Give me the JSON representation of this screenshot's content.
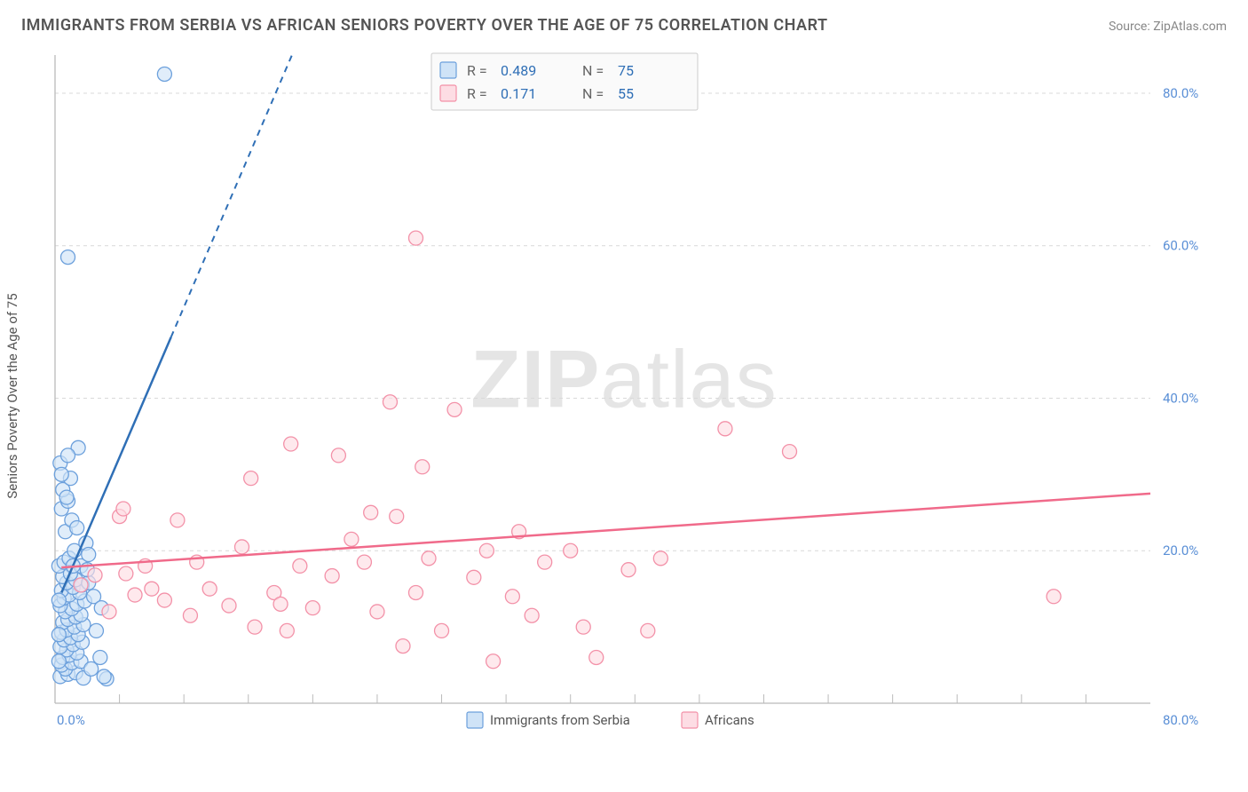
{
  "title": "IMMIGRANTS FROM SERBIA VS AFRICAN SENIORS POVERTY OVER THE AGE OF 75 CORRELATION CHART",
  "source": "Source: ZipAtlas.com",
  "y_axis_label": "Seniors Poverty Over the Age of 75",
  "watermark_bold": "ZIP",
  "watermark_rest": "atlas",
  "colors": {
    "blue_fill": "#cfe3f7",
    "blue_stroke": "#6ca0dc",
    "blue_line": "#2f6fb6",
    "pink_fill": "#fddde4",
    "pink_stroke": "#f391a8",
    "pink_line": "#f06a8a",
    "tick_text": "#5a8fd6",
    "grid": "#d9d9d9",
    "axis": "#bbbbbb",
    "title_text": "#555555",
    "legend_box_fill": "#fafafa",
    "legend_box_stroke": "#cccccc",
    "legend_text": "#666666",
    "legend_value": "#2f6fb6"
  },
  "axes": {
    "xlim": [
      0,
      85
    ],
    "ylim": [
      0,
      85
    ],
    "xticks": [
      0,
      80
    ],
    "xtick_labels": [
      "0.0%",
      "80.0%"
    ],
    "yticks": [
      20,
      40,
      60,
      80
    ],
    "ytick_labels": [
      "20.0%",
      "40.0%",
      "60.0%",
      "80.0%"
    ],
    "tick_fontsize": 15,
    "grid_dashed": true
  },
  "series": [
    {
      "key": "serbia",
      "label": "Immigrants from Serbia",
      "fill_color_key": "blue_fill",
      "stroke_color_key": "blue_stroke",
      "line_color_key": "blue_line",
      "marker_radius": 8,
      "R": "0.489",
      "N": "75",
      "trend": {
        "x0": 0.5,
        "y0": 14.5,
        "x1": 9,
        "y1": 48,
        "dashed_extend_to_y": 85
      },
      "points": [
        [
          0.4,
          3.5
        ],
        [
          1.0,
          3.8
        ],
        [
          1.6,
          4.0
        ],
        [
          0.8,
          4.5
        ],
        [
          0.5,
          5.0
        ],
        [
          1.3,
          5.3
        ],
        [
          2.0,
          5.5
        ],
        [
          0.6,
          6.0
        ],
        [
          1.1,
          6.3
        ],
        [
          1.7,
          6.6
        ],
        [
          0.9,
          7.0
        ],
        [
          0.4,
          7.4
        ],
        [
          1.4,
          7.7
        ],
        [
          2.1,
          8.0
        ],
        [
          0.7,
          8.3
        ],
        [
          1.2,
          8.6
        ],
        [
          1.8,
          9.0
        ],
        [
          0.5,
          9.3
        ],
        [
          0.9,
          9.6
        ],
        [
          1.5,
          10.0
        ],
        [
          2.2,
          10.3
        ],
        [
          0.6,
          10.6
        ],
        [
          1.0,
          11.0
        ],
        [
          1.6,
          11.3
        ],
        [
          2.0,
          11.6
        ],
        [
          0.8,
          12.0
        ],
        [
          1.3,
          12.4
        ],
        [
          0.4,
          12.8
        ],
        [
          1.7,
          13.0
        ],
        [
          2.3,
          13.4
        ],
        [
          0.7,
          13.8
        ],
        [
          1.1,
          14.2
        ],
        [
          1.9,
          14.5
        ],
        [
          0.5,
          14.8
        ],
        [
          1.4,
          15.2
        ],
        [
          2.1,
          15.5
        ],
        [
          0.9,
          15.8
        ],
        [
          1.6,
          16.2
        ],
        [
          0.6,
          16.6
        ],
        [
          1.2,
          17.0
        ],
        [
          3.0,
          14.0
        ],
        [
          2.6,
          15.8
        ],
        [
          3.2,
          9.5
        ],
        [
          3.5,
          6.0
        ],
        [
          4.0,
          3.2
        ],
        [
          2.2,
          3.3
        ],
        [
          2.8,
          4.5
        ],
        [
          3.6,
          12.5
        ],
        [
          0.3,
          18.0
        ],
        [
          0.7,
          18.5
        ],
        [
          1.1,
          19.0
        ],
        [
          1.5,
          20.0
        ],
        [
          2.4,
          21.0
        ],
        [
          0.8,
          22.5
        ],
        [
          1.3,
          24.0
        ],
        [
          0.5,
          25.5
        ],
        [
          1.0,
          26.5
        ],
        [
          1.7,
          23.0
        ],
        [
          0.6,
          28.0
        ],
        [
          1.2,
          29.5
        ],
        [
          0.4,
          31.5
        ],
        [
          1.8,
          33.5
        ],
        [
          0.9,
          27.0
        ],
        [
          2.0,
          18.0
        ],
        [
          2.6,
          19.5
        ],
        [
          1.4,
          18.0
        ],
        [
          2.5,
          17.5
        ],
        [
          0.3,
          13.5
        ],
        [
          0.3,
          9.0
        ],
        [
          0.3,
          5.5
        ],
        [
          3.8,
          3.5
        ],
        [
          1.0,
          58.5
        ],
        [
          0.5,
          30.0
        ],
        [
          1.0,
          32.5
        ],
        [
          8.5,
          82.5
        ]
      ]
    },
    {
      "key": "africans",
      "label": "Africans",
      "fill_color_key": "pink_fill",
      "stroke_color_key": "pink_stroke",
      "line_color_key": "pink_line",
      "marker_radius": 8,
      "R": "0.171",
      "N": "55",
      "trend": {
        "x0": 0.5,
        "y0": 17.8,
        "x1": 85,
        "y1": 27.5
      },
      "points": [
        [
          2.0,
          15.5
        ],
        [
          3.1,
          16.8
        ],
        [
          4.2,
          12.0
        ],
        [
          5.0,
          24.5
        ],
        [
          5.3,
          25.5
        ],
        [
          5.5,
          17.0
        ],
        [
          6.2,
          14.2
        ],
        [
          7.0,
          18.0
        ],
        [
          7.5,
          15.0
        ],
        [
          8.5,
          13.5
        ],
        [
          9.5,
          24.0
        ],
        [
          10.5,
          11.5
        ],
        [
          11.0,
          18.5
        ],
        [
          12.0,
          15.0
        ],
        [
          13.5,
          12.8
        ],
        [
          14.5,
          20.5
        ],
        [
          15.2,
          29.5
        ],
        [
          15.5,
          10.0
        ],
        [
          17.0,
          14.5
        ],
        [
          17.5,
          13.0
        ],
        [
          18.0,
          9.5
        ],
        [
          18.3,
          34.0
        ],
        [
          19.0,
          18.0
        ],
        [
          20.0,
          12.5
        ],
        [
          21.5,
          16.7
        ],
        [
          22.0,
          32.5
        ],
        [
          23.0,
          21.5
        ],
        [
          24.0,
          18.5
        ],
        [
          24.5,
          25.0
        ],
        [
          25.0,
          12.0
        ],
        [
          26.0,
          39.5
        ],
        [
          26.5,
          24.5
        ],
        [
          27.0,
          7.5
        ],
        [
          28.0,
          14.5
        ],
        [
          28.5,
          31.0
        ],
        [
          29.0,
          19.0
        ],
        [
          30.0,
          9.5
        ],
        [
          31.0,
          38.5
        ],
        [
          32.5,
          16.5
        ],
        [
          33.5,
          20.0
        ],
        [
          34.0,
          5.5
        ],
        [
          35.5,
          14.0
        ],
        [
          36.0,
          22.5
        ],
        [
          37.0,
          11.5
        ],
        [
          38.0,
          18.5
        ],
        [
          40.0,
          20.0
        ],
        [
          41.0,
          10.0
        ],
        [
          42.0,
          6.0
        ],
        [
          44.5,
          17.5
        ],
        [
          46.0,
          9.5
        ],
        [
          52.0,
          36.0
        ],
        [
          57.0,
          33.0
        ],
        [
          28.0,
          61.0
        ],
        [
          77.5,
          14.0
        ],
        [
          47.0,
          19.0
        ]
      ]
    }
  ],
  "legend_top_header": {
    "r_label": "R =",
    "n_label": "N ="
  },
  "legend_bottom": [
    {
      "series_key": "serbia"
    },
    {
      "series_key": "africans"
    }
  ]
}
